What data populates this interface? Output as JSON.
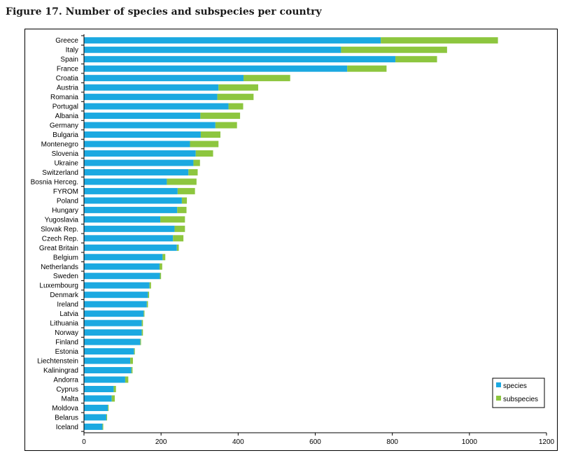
{
  "figure_title": "Figure 17. Number of species and subspecies per country",
  "chart_data": {
    "type": "bar",
    "orientation": "horizontal",
    "stacked": true,
    "title": "Figure 17. Number of species and subspecies per country",
    "xlabel": "",
    "ylabel": "",
    "xlim": [
      0,
      1200
    ],
    "xticks": [
      "0",
      "200",
      "400",
      "600",
      "800",
      "1000",
      "1200"
    ],
    "grid": false,
    "legend_position": "bottom-right",
    "categories": [
      "Greece",
      "Italy",
      "Spain",
      "France",
      "Croatia",
      "Austria",
      "Romania",
      "Portugal",
      "Albania",
      "Germany",
      "Bulgaria",
      "Montenegro",
      "Slovenia",
      "Ukraine",
      "Switzerland",
      "Bosnia Herceg.",
      "FYROM",
      "Poland",
      "Hungary",
      "Yugoslavia",
      "Slovak Rep.",
      "Czech Rep.",
      "Great Britain",
      "Belgium",
      "Netherlands",
      "Sweden",
      "Luxembourg",
      "Denmark",
      "Ireland",
      "Latvia",
      "Lithuania",
      "Norway",
      "Finland",
      "Estonia",
      "Liechtenstein",
      "Kaliningrad",
      "Andorra",
      "Cyprus",
      "Malta",
      "Moldova",
      "Belarus",
      "Iceland"
    ],
    "series": [
      {
        "name": "species",
        "color": "#1ba9e1",
        "values": [
          770,
          667,
          808,
          683,
          414,
          349,
          346,
          375,
          302,
          341,
          303,
          275,
          290,
          284,
          271,
          215,
          243,
          254,
          242,
          198,
          235,
          231,
          241,
          204,
          196,
          197,
          170,
          166,
          163,
          155,
          150,
          150,
          146,
          130,
          120,
          123,
          107,
          77,
          72,
          62,
          58,
          48
        ]
      },
      {
        "name": "subspecies",
        "color": "#8dc63f",
        "values": [
          304,
          275,
          108,
          102,
          121,
          103,
          94,
          38,
          103,
          56,
          51,
          74,
          45,
          17,
          24,
          77,
          45,
          13,
          24,
          64,
          27,
          27,
          5,
          7,
          7,
          3,
          4,
          3,
          3,
          2,
          3,
          3,
          2,
          2,
          7,
          3,
          8,
          6,
          8,
          2,
          2,
          2
        ]
      }
    ]
  }
}
